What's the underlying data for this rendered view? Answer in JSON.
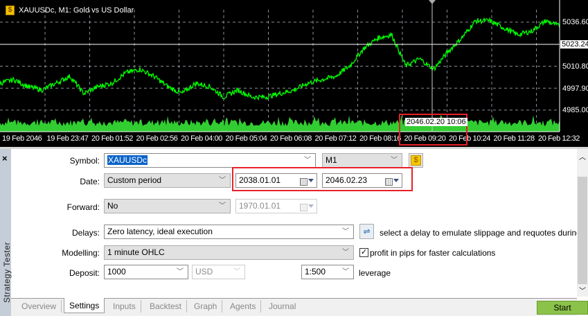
{
  "chart": {
    "title": "XAUUSDc, M1:  Gold vs US Dollar",
    "symbol_icon": "dollar-plus-icon",
    "price_labels": [
      "5036.60",
      "5010.80",
      "4997.90",
      "4985.00"
    ],
    "current_price": "5023.24",
    "time_labels": [
      "19 Feb 2046",
      "19 Feb 23:47",
      "20 Feb 01:52",
      "20 Feb 02:56",
      "20 Feb 04:00",
      "20 Feb 05:04",
      "20 Feb 06:08",
      "20 Feb 07:12",
      "20 Feb 08:16",
      "20 Feb 09:20",
      "20 Feb 10:24",
      "20 Feb 11:28",
      "20 Feb 12:32"
    ],
    "crosshair_time": "2046.02.20 10:06",
    "price_path": [
      5000.8,
      5002.9,
      4998.8,
      4996.8,
      5000.8,
      5004.9,
      4994.7,
      4998.8,
      5000.8,
      5006.9,
      5009.0,
      5004.9,
      4998.8,
      4994.7,
      5000.8,
      4998.8,
      4992.7,
      4996.8,
      4992.7,
      4992.7,
      4994.7,
      4996.8,
      5000.8,
      5002.9,
      5004.9,
      5011.0,
      5021.2,
      5027.3,
      5029.3,
      5011.0,
      5015.1,
      5009.0,
      5019.1,
      5027.3,
      5037.4,
      5037.4,
      5033.3,
      5029.3,
      5031.3,
      5037.4,
      5034.2
    ],
    "line_color": "#00ff00",
    "volume_color": "#32cd32"
  },
  "settings": {
    "close": "×",
    "panel_title": "Strategy Tester",
    "symbol_label": "Symbol:",
    "symbol_value": "XAUUSDc",
    "timeframe": "M1",
    "date_label": "Date:",
    "date_mode": "Custom period",
    "date_from": "2038.01.01",
    "date_to": "2046.02.23",
    "forward_label": "Forward:",
    "forward_value": "No",
    "forward_date": "1970.01.01",
    "delays_label": "Delays:",
    "delays_value": "Zero latency, ideal execution",
    "delays_hint": "select a delay to emulate slippage and requotes during trade",
    "modelling_label": "Modelling:",
    "modelling_value": "1 minute OHLC",
    "pips_checked": true,
    "pips_label": "profit in pips for faster calculations",
    "deposit_label": "Deposit:",
    "deposit_value": "1000",
    "currency": "USD",
    "leverage_value": "1:500",
    "leverage_label": "leverage"
  },
  "tabs": [
    "Overview",
    "Settings",
    "Inputs",
    "Backtest",
    "Graph",
    "Agents",
    "Journal"
  ],
  "active_tab": "Settings",
  "start_label": "Start"
}
